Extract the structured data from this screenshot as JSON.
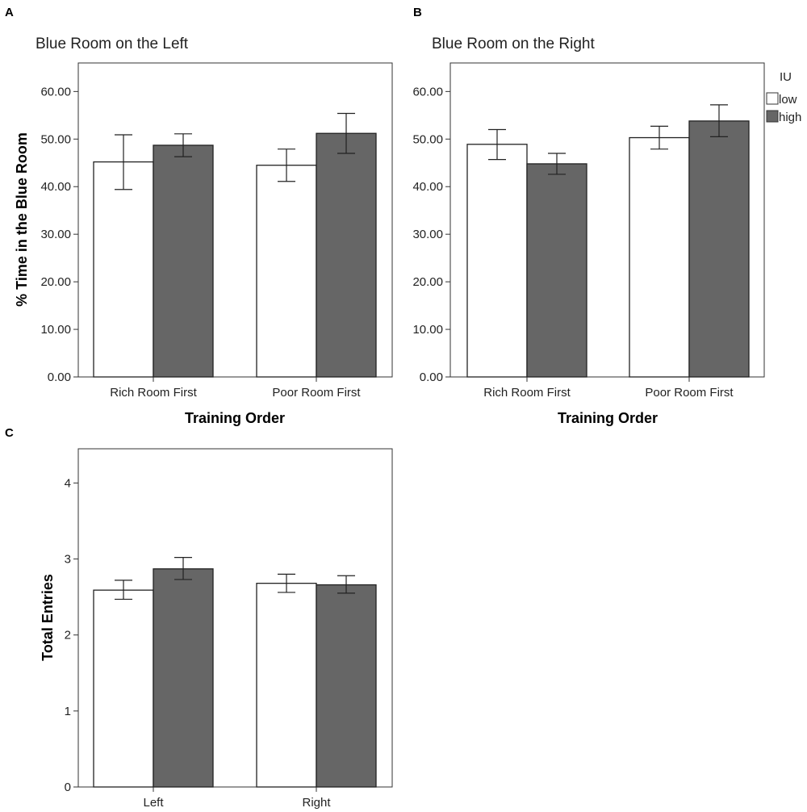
{
  "figure": {
    "panel_letters": [
      "A",
      "B",
      "C"
    ]
  },
  "legend": {
    "title": "IU",
    "entries": [
      {
        "label": "low",
        "color": "#ffffff"
      },
      {
        "label": "high",
        "color": "#666666"
      }
    ]
  },
  "chart_data": [
    {
      "type": "bar",
      "panel": "A",
      "title": "Blue Room on the Left",
      "xlabel": "Training Order",
      "ylabel": "% Time in the Blue Room",
      "categories": [
        "Rich Room First",
        "Poor Room First"
      ],
      "ylim": [
        0,
        66
      ],
      "yticks": [
        0,
        10,
        20,
        30,
        40,
        50,
        60
      ],
      "ytick_labels": [
        "0.00",
        "10.00",
        "20.00",
        "30.00",
        "40.00",
        "50.00",
        "60.00"
      ],
      "series": [
        {
          "name": "low",
          "color": "#ffffff",
          "values": [
            45.2,
            44.5
          ],
          "err_low": [
            39.4,
            41.1
          ],
          "err_high": [
            50.9,
            47.9
          ]
        },
        {
          "name": "high",
          "color": "#666666",
          "values": [
            48.7,
            51.2
          ],
          "err_low": [
            46.3,
            47.0
          ],
          "err_high": [
            51.1,
            55.4
          ]
        }
      ]
    },
    {
      "type": "bar",
      "panel": "B",
      "title": "Blue Room on the Right",
      "xlabel": "Training Order",
      "ylabel": "",
      "categories": [
        "Rich Room First",
        "Poor Room First"
      ],
      "ylim": [
        0,
        66
      ],
      "yticks": [
        0,
        10,
        20,
        30,
        40,
        50,
        60
      ],
      "ytick_labels": [
        "0.00",
        "10.00",
        "20.00",
        "30.00",
        "40.00",
        "50.00",
        "60.00"
      ],
      "series": [
        {
          "name": "low",
          "color": "#ffffff",
          "values": [
            48.9,
            50.3
          ],
          "err_low": [
            45.7,
            47.9
          ],
          "err_high": [
            52.0,
            52.7
          ]
        },
        {
          "name": "high",
          "color": "#666666",
          "values": [
            44.8,
            53.8
          ],
          "err_low": [
            42.6,
            50.5
          ],
          "err_high": [
            47.0,
            57.2
          ]
        }
      ]
    },
    {
      "type": "bar",
      "panel": "C",
      "title": "",
      "xlabel": "",
      "ylabel": "Total Entries",
      "categories": [
        "Left",
        "Right"
      ],
      "ylim": [
        0,
        4.45
      ],
      "yticks": [
        0,
        1,
        2,
        3,
        4
      ],
      "ytick_labels": [
        "0",
        "1",
        "2",
        "3",
        "4"
      ],
      "series": [
        {
          "name": "low",
          "color": "#ffffff",
          "values": [
            2.59,
            2.68
          ],
          "err_low": [
            2.47,
            2.56
          ],
          "err_high": [
            2.72,
            2.8
          ]
        },
        {
          "name": "high",
          "color": "#666666",
          "values": [
            2.87,
            2.66
          ],
          "err_low": [
            2.73,
            2.55
          ],
          "err_high": [
            3.02,
            2.78
          ]
        }
      ]
    }
  ]
}
